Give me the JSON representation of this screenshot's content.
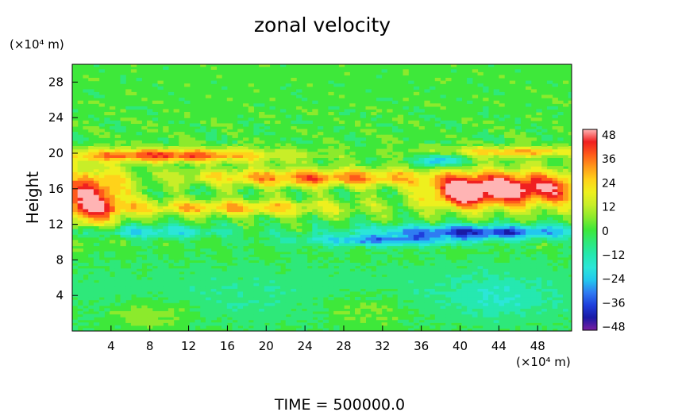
{
  "chart_data": {
    "type": "heatmap",
    "title": "zonal velocity",
    "ylabel": "Height",
    "y_unit": "(×10⁴ m)",
    "x_unit": "(×10⁴ m)",
    "footer": "TIME  =  500000.0",
    "xlim": [
      0,
      51.5
    ],
    "ylim": [
      0,
      30
    ],
    "x_ticks": [
      "4",
      "8",
      "12",
      "16",
      "20",
      "24",
      "28",
      "32",
      "36",
      "40",
      "44",
      "48"
    ],
    "y_ticks": [
      "4",
      "8",
      "12",
      "16",
      "20",
      "24",
      "28"
    ],
    "colorbar": {
      "vmin": -48,
      "vmax": 48,
      "labels": [
        "48",
        "36",
        "24",
        "12",
        "0",
        "−12",
        "−24",
        "−36",
        "−48"
      ],
      "stops": [
        {
          "value": -48,
          "color": "#7b1fa2"
        },
        {
          "value": -42,
          "color": "#1a1aa6"
        },
        {
          "value": -36,
          "color": "#1f3fdc"
        },
        {
          "value": -30,
          "color": "#2f7cf2"
        },
        {
          "value": -24,
          "color": "#22c8ee"
        },
        {
          "value": -18,
          "color": "#2be6d8"
        },
        {
          "value": -12,
          "color": "#25e8b0"
        },
        {
          "value": -6,
          "color": "#2ee87a"
        },
        {
          "value": 0,
          "color": "#3ee83a"
        },
        {
          "value": 6,
          "color": "#8cea2c"
        },
        {
          "value": 12,
          "color": "#c8ee28"
        },
        {
          "value": 18,
          "color": "#eef01e"
        },
        {
          "value": 24,
          "color": "#ffd21a"
        },
        {
          "value": 30,
          "color": "#ff9a1a"
        },
        {
          "value": 36,
          "color": "#ff5a1a"
        },
        {
          "value": 42,
          "color": "#f02020"
        },
        {
          "value": 48,
          "color": "#ffb4b4"
        }
      ]
    },
    "features": [
      {
        "note": "strong eastward jet",
        "x": [
          0,
          4
        ],
        "y": [
          12.5,
          17.5
        ],
        "value": 44
      },
      {
        "note": "strong eastward jet",
        "x": [
          39,
          51.5
        ],
        "y": [
          14,
          17.5
        ],
        "value": 48
      },
      {
        "note": "eastward band",
        "x": [
          14,
          36
        ],
        "y": [
          16.5,
          18
        ],
        "value": 32
      },
      {
        "note": "eastward band",
        "x": [
          4,
          30
        ],
        "y": [
          13.2,
          14.6
        ],
        "value": 26
      },
      {
        "note": "eastward band",
        "x": [
          0,
          24
        ],
        "y": [
          19.2,
          20.4
        ],
        "value": 36
      },
      {
        "note": "westward band",
        "x": [
          32,
          51.5
        ],
        "y": [
          10.6,
          11.8
        ],
        "value": -36
      },
      {
        "note": "westward band",
        "x": [
          25,
          40
        ],
        "y": [
          9.6,
          10.6
        ],
        "value": -24
      },
      {
        "note": "westward band",
        "x": [
          0,
          14
        ],
        "y": [
          10.8,
          11.6
        ],
        "value": -20
      },
      {
        "note": "weak westward lower layer",
        "x": [
          0,
          51.5
        ],
        "y": [
          1,
          8
        ],
        "value": -8
      }
    ]
  }
}
